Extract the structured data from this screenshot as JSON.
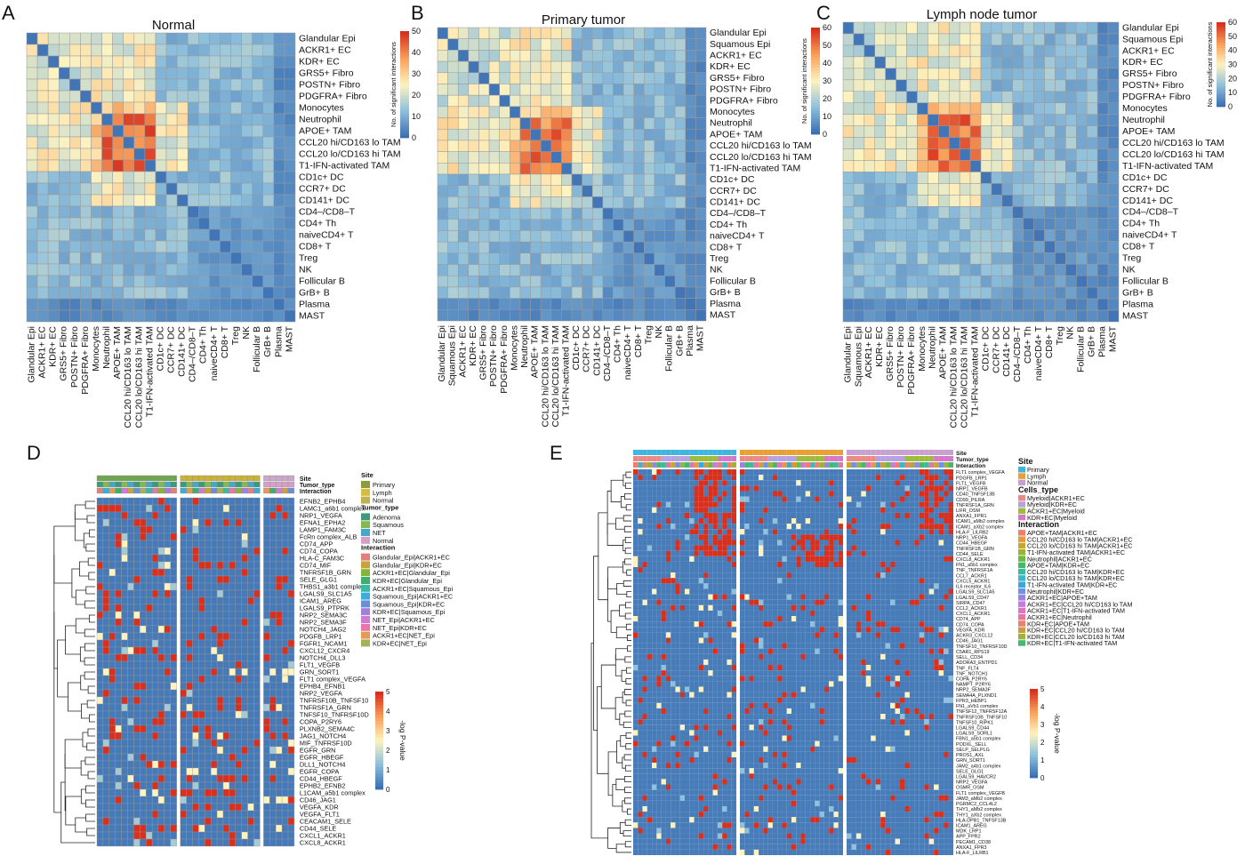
{
  "panels": {
    "A": {
      "letter": "A",
      "title": "Normal"
    },
    "B": {
      "letter": "B",
      "title": "Primary tumor"
    },
    "C": {
      "letter": "C",
      "title": "Lymph node tumor"
    },
    "D": {
      "letter": "D"
    },
    "E": {
      "letter": "E"
    }
  },
  "heatmap_colorbar": {
    "label": "No. of significant interactions",
    "A_ticks": [
      "0",
      "10",
      "20",
      "30",
      "40",
      "50"
    ],
    "B_ticks": [
      "0",
      "10",
      "20",
      "30",
      "40",
      "50",
      "60"
    ],
    "C_ticks": [
      "0",
      "10",
      "20",
      "30",
      "40",
      "50",
      "60"
    ]
  },
  "cell_types_A": [
    "Glandular Epi",
    "ACKR1+ EC",
    "KDR+ EC",
    "GRS5+ Fibro",
    "POSTN+ Fibro",
    "PDGFRA+ Fibro",
    "Monocytes",
    "Neutrophil",
    "APOE+ TAM",
    "CCL20hi/CD163lo TAM",
    "CCL20lo/CD163hi TAM",
    "T1-IFN-activated TAM",
    "CD1c+ DC",
    "CCR7+ DC",
    "CD141+ DC",
    "CD4–/CD8–T",
    "CD4+ Th",
    "naiveCD4+ T",
    "CD8+ T",
    "Treg",
    "NK",
    "Follicular B",
    "GrB+ B",
    "Plasma",
    "MAST"
  ],
  "cell_types_BC": [
    "Glandular Epi",
    "Squamous Epi",
    "ACKR1+ EC",
    "KDR+ EC",
    "GRS5+ Fibro",
    "POSTN+ Fibro",
    "PDGFRA+ Fibro",
    "Monocytes",
    "Neutrophil",
    "APOE+ TAM",
    "CCL20hi/CD163lo TAM",
    "CCL20lo/CD163hi TAM",
    "T1-IFN-activated TAM",
    "CD1c+ DC",
    "CCR7+ DC",
    "CD141+ DC",
    "CD4–/CD8–T",
    "CD4+ Th",
    "naiveCD4+ T",
    "CD8+ T",
    "Treg",
    "NK",
    "Follicular B",
    "GrB+ B",
    "Plasma",
    "MAST"
  ],
  "panelD": {
    "row_labels": [
      "EFNB2_EPHB4",
      "LAMC1_a6b1 complex",
      "NRP1_VEGFA",
      "EFNA1_EPHA2",
      "LAMP1_FAM3C",
      "FcRn complex_ALB",
      "CD74_APP",
      "CD74_COPA",
      "HLA-C_FAM3C",
      "CD74_MIF",
      "TNFRSF1B_GRN",
      "SELE_GLG1",
      "THBS1_a3b1 complex",
      "LGALS9_SLC1A5",
      "ICAM1_AREG",
      "LGALS9_PTPRK",
      "NRP2_SEMA3C",
      "NRP2_SEMA3F",
      "NOTCH4_JAG2",
      "PDGFB_LRP1",
      "FGFR1_NCAM1",
      "CXCL12_CXCR4",
      "NOTCH4_DLL3",
      "FLT1_VEGFB",
      "GRN_SORT1",
      "FLT1 complex_VEGFA",
      "EPHB4_EFNB1",
      "NRP2_VEGFA",
      "TNFRSF10B_TNFSF10",
      "TNFRSF1A_GRN",
      "TNFSF10_TNFRSF10D",
      "COPA_P2RY6",
      "PLXNB2_SEMA4C",
      "JAG1_NOTCH4",
      "MIF_TNFRSF10D",
      "EGFR_GRN",
      "EGFR_HBEGF",
      "DLL1_NOTCH4",
      "EGFR_COPA",
      "CD44_HBEGF",
      "EPHB2_EFNB2",
      "L1CAM_a5b1 complex",
      "CD46_JAG1",
      "VEGFA_KDR",
      "VEGFA_FLT1",
      "CEACAM1_SELE",
      "CD44_SELE",
      "CXCL1_ACKR1",
      "CXCL8_ACKR1"
    ],
    "header_labels": [
      "Site",
      "Tumor_type",
      "Interaction"
    ],
    "legend": {
      "site_title": "Site",
      "site": [
        {
          "label": "Primary",
          "color": "#8e9b3a"
        },
        {
          "label": "Lymph",
          "color": "#d5bd3f"
        },
        {
          "label": "Normal",
          "color": "#c1b250"
        }
      ],
      "tumor_title": "Tumor_type",
      "tumor": [
        {
          "label": "Adenoma",
          "color": "#3c9a78"
        },
        {
          "label": "Squamous",
          "color": "#85b855"
        },
        {
          "label": "NET",
          "color": "#46a8c8"
        },
        {
          "label": "Normal",
          "color": "#d4a0c8"
        }
      ],
      "interaction_title": "Interaction",
      "interaction": [
        {
          "label": "Glandular_Epi|ACKR1+EC",
          "color": "#e2807b"
        },
        {
          "label": "Glandular_Epi|KDR+EC",
          "color": "#c8a23c"
        },
        {
          "label": "ACKR1+EC|Glandular_Epi",
          "color": "#86b43b"
        },
        {
          "label": "KDR+EC|Glandular_Epi",
          "color": "#3fae6c"
        },
        {
          "label": "ACKR1+EC|Squamous_Epi",
          "color": "#3db7a6"
        },
        {
          "label": "Squamous_Epi|ACKR1+EC",
          "color": "#3aaed8"
        },
        {
          "label": "Squamous_Epi|KDR+EC",
          "color": "#6b8fd6"
        },
        {
          "label": "KDR+EC|Squamous_Epi",
          "color": "#a57fd7"
        },
        {
          "label": "NET_Epi|ACKR1+EC",
          "color": "#d17ad1"
        },
        {
          "label": "NET_Epi|KDR+EC",
          "color": "#e677a8"
        },
        {
          "label": "ACKR1+EC|NET_Epi",
          "color": "#e49a55"
        },
        {
          "label": "KDR+EC|NET_Epi",
          "color": "#a9b05b"
        }
      ],
      "scale_title": "-log P-value",
      "scale_ticks": [
        "0",
        "1",
        "2",
        "3",
        "4",
        "5"
      ]
    }
  },
  "panelE": {
    "row_labels": [
      "FLT1 complex_VEGFA",
      "PDGFB_LRP1",
      "FLT1_VEGFB",
      "NRP1_VEGFB",
      "CD40_TNFSF13B",
      "CD99_PILRA",
      "TNFRSF1A_GRN",
      "LIFR_OSM",
      "ANXA1_FPR1",
      "ICAM1_aMb2 complex",
      "ICAM1_aXb2 complex",
      "HLA-F_LILRB2",
      "NRP1_VEGFA",
      "CD44_HBEGF",
      "TNFRSF1B_GRN",
      "CD44_SELE",
      "CXCL8_ACKR1",
      "FN1_a5b1 complex",
      "TNF_TNFRSF1A",
      "CCL7_ACKR1",
      "CXCL5_ACKR1",
      "IL6 receptor_IL6",
      "LGALS9_SLC1A5",
      "LGALS9_CD47",
      "SIRPA_CD47",
      "CCL2_ACKR1",
      "CXCL1_ACKR1",
      "CD74_APP",
      "CD74_COPA",
      "VEGFA_KDR",
      "ACKR3_CXCL12",
      "CD46_JAG1",
      "TNFSF10_TNFRSF10D",
      "C5AR1_RPS19",
      "SELL_CD34",
      "ADORA3_ENTPD1",
      "TNF_FLT4",
      "TNF_NOTCH1",
      "COPA_P2RY6",
      "NAMPT_P2RY6",
      "NRP2_SEMA3F",
      "SEMA4A_PLXND1",
      "FPR3_HEBP1",
      "FN1_aVb1 complex",
      "TNFSF12_TNFRSF12A",
      "TNFRSF10B_TNFSF10",
      "TNFSF10_RIPK1",
      "LGALS9_CD44",
      "LGALS9_SORL1",
      "FBN1_a5b1 complex",
      "PODXL_SELL",
      "SELP_SELPLG",
      "PROS1_AXL",
      "GRN_SORT1",
      "JAM2_a4b1 complex",
      "SELE_GLG1",
      "LGALS9_HAVCR2",
      "NRP2_VEGFA",
      "OSMR_OSM",
      "FLT1 complex_VEGFB",
      "JAM3_aMb2 complex",
      "PGRMC2_CCL4L2",
      "THY1_aMb2 complex",
      "THY1_aXb2 complex",
      "HLA-DPB1_TNFSF13B",
      "ICAM1_AREG",
      "MDK_LRP1",
      "APP_FPR2",
      "PECAM1_CD38",
      "ANXA1_FPR3",
      "HLA-F_LILRB1"
    ],
    "header_labels": [
      "Site",
      "Tumor_type",
      "Interaction"
    ],
    "legend": {
      "site_title": "Site",
      "site": [
        {
          "label": "Primary",
          "color": "#3fb6e0"
        },
        {
          "label": "Lymph",
          "color": "#e8a032"
        },
        {
          "label": "Normal",
          "color": "#c8a0d0"
        }
      ],
      "cells_title": "Cells_type",
      "cells": [
        {
          "label": "Myeloid|ACKR1+EC",
          "color": "#e98a86"
        },
        {
          "label": "Myeloid|KDR+EC",
          "color": "#b7a1e0"
        },
        {
          "label": "ACKR1+EC|Myeloid",
          "color": "#9dbb3c"
        },
        {
          "label": "KDR+EC|Myeloid",
          "color": "#d777c8"
        }
      ],
      "interaction_title": "Interaction",
      "interaction": [
        {
          "label": "APOE+TAM|ACKR1+EC",
          "color": "#ef7f6b"
        },
        {
          "label": "CCL20hi/CD163lo TAM|ACKR1+EC",
          "color": "#e69a3a"
        },
        {
          "label": "CCL20lo/CD163hi TAM|ACKR1+EC",
          "color": "#c9a632"
        },
        {
          "label": "T1-IFN-activated TAM|ACKR1+EC",
          "color": "#a2b12f"
        },
        {
          "label": "Neutrophil|ACKR1+EC",
          "color": "#6cbb3f"
        },
        {
          "label": "APOE+TAM|KDR+EC",
          "color": "#3fbb6a"
        },
        {
          "label": "CCL20hi/CD163lo TAM|KDR+EC",
          "color": "#38bca0"
        },
        {
          "label": "CCL20lo/CD163hi TAM|KDR+EC",
          "color": "#38b8c8"
        },
        {
          "label": "T1-IFN-activated TAM|KDR+EC",
          "color": "#3aa8e0"
        },
        {
          "label": "Neutrophil|KDR+EC",
          "color": "#6f92e8"
        },
        {
          "label": "ACKR1+EC|APOE+TAM",
          "color": "#9a82e6"
        },
        {
          "label": "ACKR1+EC|CCL20hi/CD163lo TAM",
          "color": "#c77bdc"
        },
        {
          "label": "ACKR1+EC|T1-IFN-activated TAM",
          "color": "#e072c2"
        },
        {
          "label": "ACKR1+EC|Neutrophil",
          "color": "#ec73a0"
        },
        {
          "label": "KDR+EC|APOE+TAM",
          "color": "#e7826f"
        },
        {
          "label": "KDR+EC|CCL20hi/CD163lo TAM",
          "color": "#d49a3a"
        },
        {
          "label": "KDR+EC|CCL20lo/CD163hi TAM",
          "color": "#9cb33c"
        },
        {
          "label": "KDR+EC|T1-IFN-activated TAM",
          "color": "#45b96e"
        }
      ],
      "scale_title": "-log P-value",
      "scale_ticks": [
        "0",
        "1",
        "2",
        "3",
        "4",
        "5"
      ]
    }
  },
  "colors": {
    "low": "#3b6fb2",
    "mid": "#fdf3c0",
    "high": "#d7301f",
    "grid_line": "#9a9a9a"
  }
}
